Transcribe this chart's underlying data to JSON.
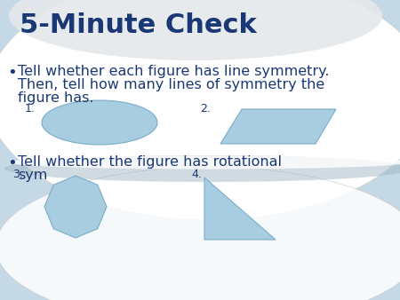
{
  "title": "5-Minute Check",
  "title_color": "#1a3875",
  "title_fontsize": 22,
  "bullet1_line1": "Tell whether each figure has line symmetry.",
  "bullet1_line2": "Then, tell how many lines of symmetry the",
  "bullet1_line3": "figure has.",
  "bullet2_line1": "Tell whether the figure has rotational",
  "bullet2_line2": "sym",
  "text_color": "#1a3875",
  "text_fontsize": 11.5,
  "shape_fill": "#a8cce0",
  "shape_edge": "#7aaec8",
  "label_fontsize": 9,
  "bg_main": "#c5d8e5",
  "bg_upper_blob": "#e8eef2",
  "bg_lower_blob": "#dce8ef"
}
